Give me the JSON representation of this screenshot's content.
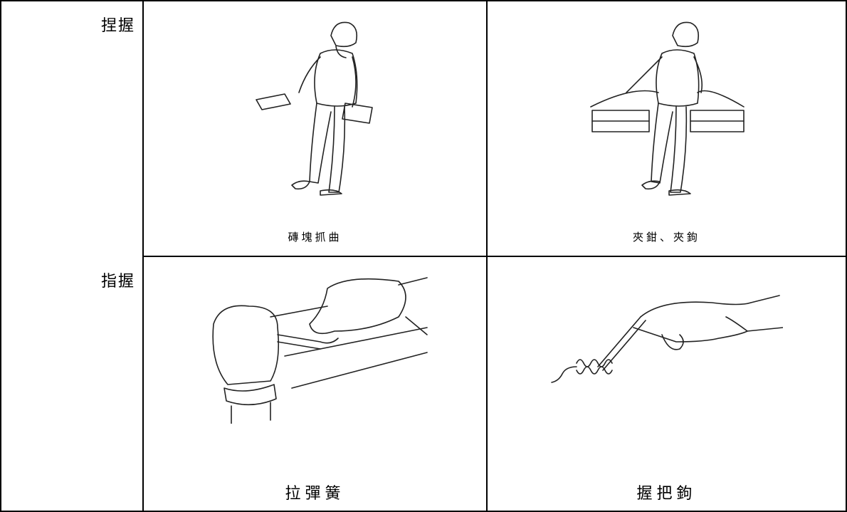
{
  "table": {
    "rows": [
      {
        "label": "捏握",
        "cells": [
          {
            "caption": "磚塊抓曲"
          },
          {
            "caption": "夾鉗、夾鉤"
          }
        ]
      },
      {
        "label": "指握",
        "cells": [
          {
            "caption": "拉彈簧"
          },
          {
            "caption": "握把鉤"
          }
        ]
      }
    ]
  }
}
